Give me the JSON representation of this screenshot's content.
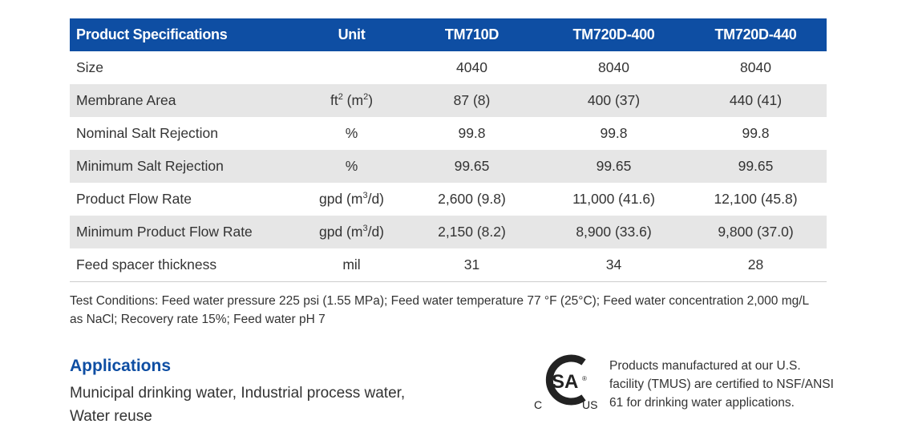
{
  "table": {
    "headers": [
      "Product Specifications",
      "Unit",
      "TM710D",
      "TM720D-400",
      "TM720D-440"
    ],
    "rows": [
      {
        "label": "Size",
        "unit": "",
        "unit_sup": "",
        "unit_tail": "",
        "unit_sup2": "",
        "unit_end": "",
        "values": [
          "4040",
          "8040",
          "8040"
        ]
      },
      {
        "label": "Membrane Area",
        "unit": "ft",
        "unit_sup": "2",
        "unit_tail": " (m",
        "unit_sup2": "2",
        "unit_end": ")",
        "values": [
          "87 (8)",
          "400 (37)",
          "440 (41)"
        ]
      },
      {
        "label": "Nominal Salt Rejection",
        "unit": "%",
        "unit_sup": "",
        "unit_tail": "",
        "unit_sup2": "",
        "unit_end": "",
        "values": [
          "99.8",
          "99.8",
          "99.8"
        ]
      },
      {
        "label": "Minimum Salt Rejection",
        "unit": "%",
        "unit_sup": "",
        "unit_tail": "",
        "unit_sup2": "",
        "unit_end": "",
        "values": [
          "99.65",
          "99.65",
          "99.65"
        ]
      },
      {
        "label": "Product Flow Rate",
        "unit": "gpd (m",
        "unit_sup": "3",
        "unit_tail": "/d)",
        "unit_sup2": "",
        "unit_end": "",
        "values": [
          "2,600 (9.8)",
          "11,000 (41.6)",
          "12,100 (45.8)"
        ]
      },
      {
        "label": "Minimum Product Flow Rate",
        "unit": "gpd (m",
        "unit_sup": "3",
        "unit_tail": "/d)",
        "unit_sup2": "",
        "unit_end": "",
        "values": [
          "2,150 (8.2)",
          "8,900 (33.6)",
          "9,800 (37.0)"
        ]
      },
      {
        "label": "Feed spacer thickness",
        "unit": "mil",
        "unit_sup": "",
        "unit_tail": "",
        "unit_sup2": "",
        "unit_end": "",
        "values": [
          "31",
          "34",
          "28"
        ]
      }
    ]
  },
  "test_conditions": "Test Conditions: Feed water pressure 225 psi (1.55 MPa); Feed water temperature 77 °F (25°C); Feed water concentration 2,000 mg/L as NaCl; Recovery rate 15%; Feed water pH 7",
  "applications": {
    "heading": "Applications",
    "text": "Municipal drinking water, Industrial process water, Water reuse"
  },
  "certification": {
    "logo_text": "CSA C US ®",
    "text": "Products manufactured at our U.S. facility (TMUS) are certified to NSF/ANSI 61 for drinking water applications."
  },
  "colors": {
    "header_bg": "#0e4ea3",
    "alt_row": "#e6e6e6",
    "heading": "#0e4ea3"
  }
}
